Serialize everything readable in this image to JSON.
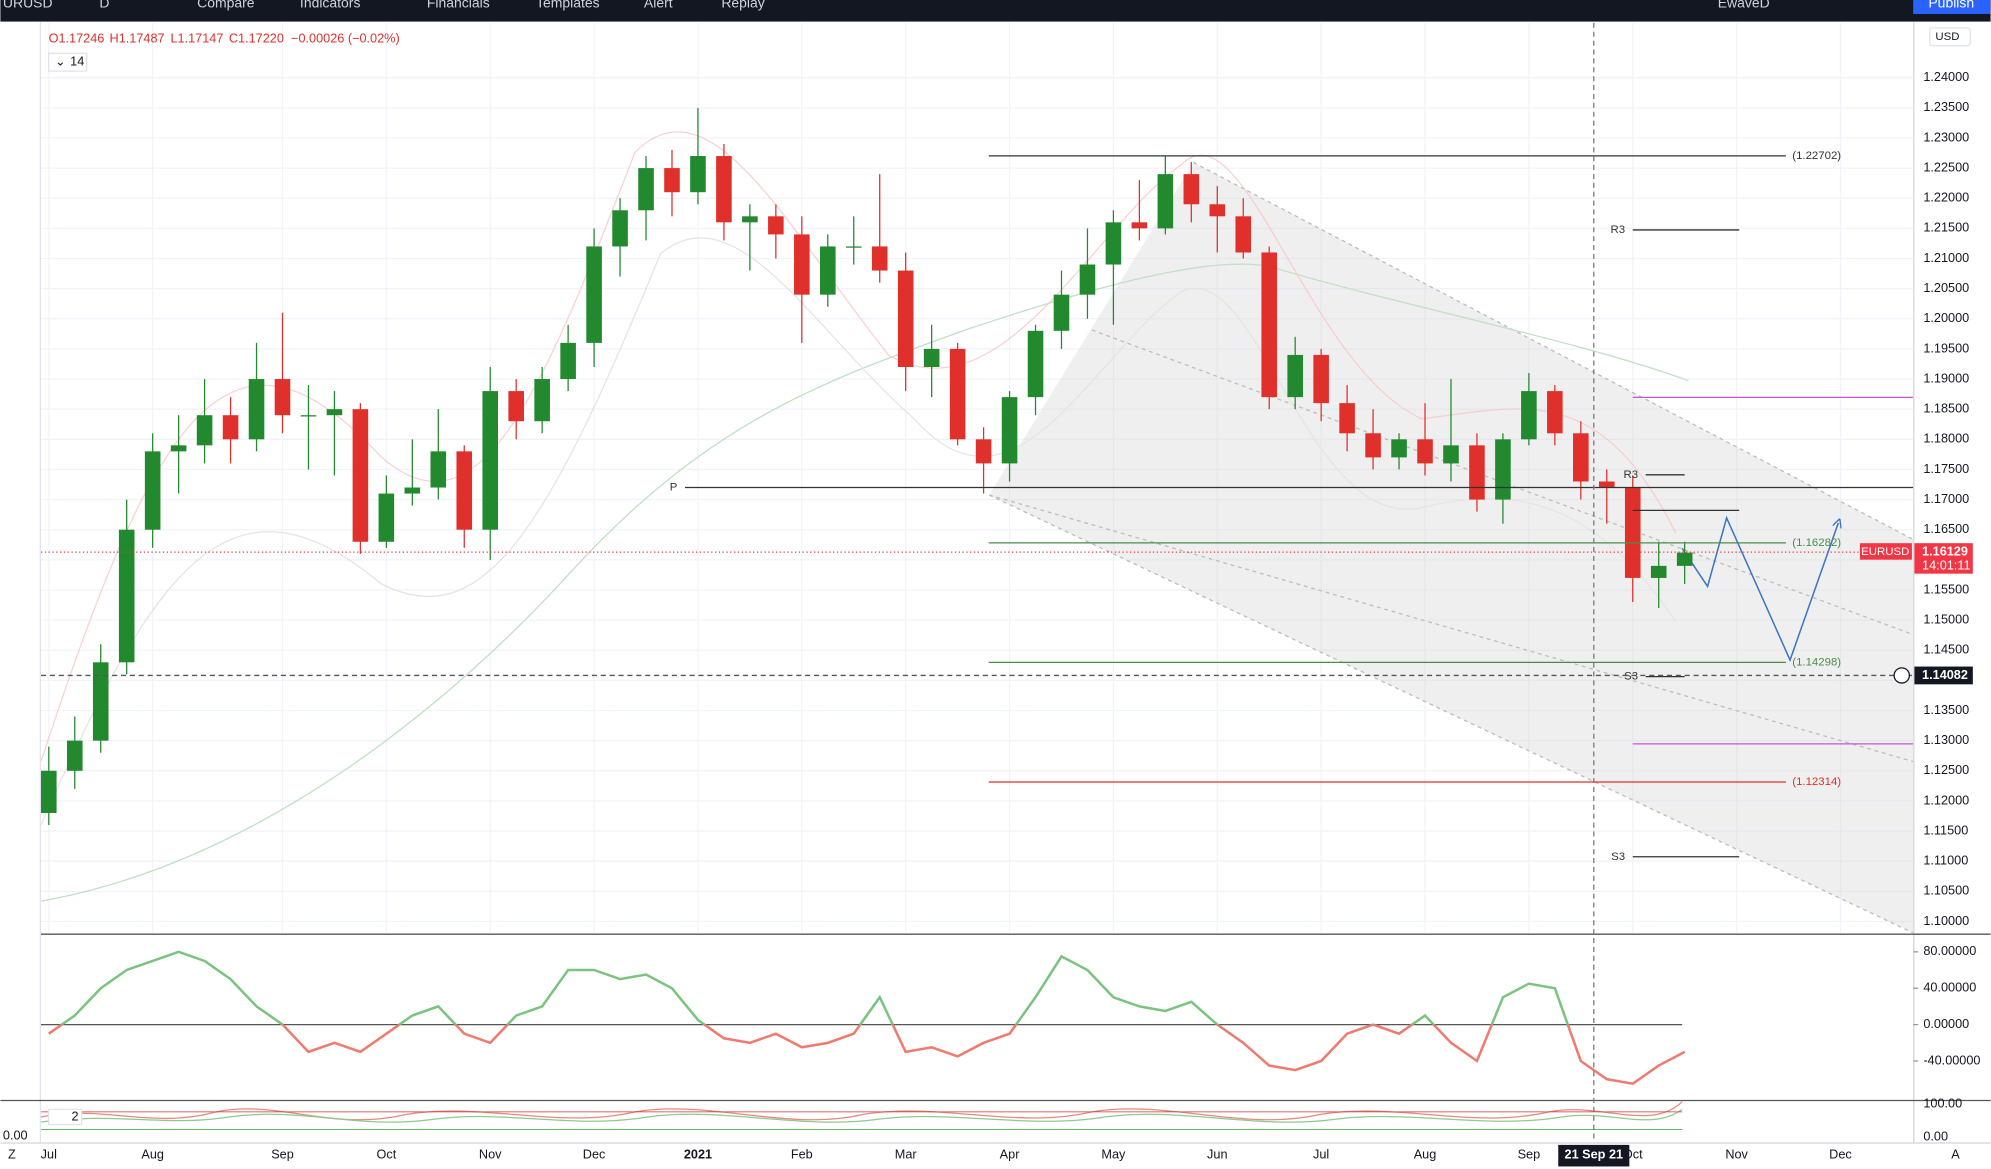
{
  "toolbar": {
    "symbol": "URUSD",
    "interval": "D",
    "items": [
      "Compare",
      "Indicators",
      "Financials",
      "Templates",
      "Alert",
      "Replay"
    ],
    "user": "EwaveD",
    "publish": "Publish"
  },
  "legend": {
    "ohlc": [
      "O1.17246",
      "H1.17487",
      "L1.17147",
      "C1.17220",
      "−0.00026 (−0.02%)"
    ],
    "length": "14"
  },
  "currency": "USD",
  "stoch_panel": {
    "collapse": "2",
    "ticks": [
      "100.00",
      "0.00"
    ],
    "left_tick": "0.00"
  },
  "footer": {
    "left": "Z",
    "right": "A"
  },
  "chart_data": [
    {
      "type": "candlestick",
      "symbol": "EURUSD",
      "up_color": "#22892f",
      "down_color": "#e0302b",
      "grid": true,
      "open": [
        1.118,
        1.125,
        1.13,
        1.143,
        1.165,
        1.178,
        1.179,
        1.184,
        1.18,
        1.19,
        1.184,
        1.184,
        1.185,
        1.163,
        1.171,
        1.172,
        1.178,
        1.165,
        1.188,
        1.183,
        1.19,
        1.196,
        1.212,
        1.218,
        1.225,
        1.221,
        1.227,
        1.216,
        1.217,
        1.214,
        1.204,
        1.212,
        1.212,
        1.208,
        1.192,
        1.195,
        1.18,
        1.176,
        1.187,
        1.198,
        1.204,
        1.209,
        1.216,
        1.215,
        1.224,
        1.219,
        1.217,
        1.211,
        1.187,
        1.194,
        1.186,
        1.181,
        1.177,
        1.18,
        1.176,
        1.179,
        1.17,
        1.18,
        1.188,
        1.181,
        1.173,
        1.172,
        1.157,
        1.159
      ],
      "high": [
        1.129,
        1.134,
        1.146,
        1.17,
        1.181,
        1.184,
        1.19,
        1.187,
        1.196,
        1.201,
        1.189,
        1.188,
        1.186,
        1.174,
        1.18,
        1.185,
        1.179,
        1.192,
        1.19,
        1.192,
        1.199,
        1.215,
        1.22,
        1.227,
        1.228,
        1.235,
        1.229,
        1.219,
        1.219,
        1.217,
        1.214,
        1.217,
        1.224,
        1.211,
        1.199,
        1.196,
        1.182,
        1.188,
        1.199,
        1.208,
        1.215,
        1.218,
        1.223,
        1.227,
        1.226,
        1.222,
        1.22,
        1.212,
        1.197,
        1.195,
        1.189,
        1.185,
        1.181,
        1.186,
        1.19,
        1.181,
        1.181,
        1.191,
        1.189,
        1.183,
        1.175,
        1.174,
        1.163,
        1.163
      ],
      "low": [
        1.116,
        1.122,
        1.128,
        1.141,
        1.162,
        1.171,
        1.176,
        1.176,
        1.178,
        1.181,
        1.175,
        1.174,
        1.161,
        1.162,
        1.169,
        1.17,
        1.162,
        1.16,
        1.18,
        1.181,
        1.188,
        1.192,
        1.207,
        1.213,
        1.217,
        1.219,
        1.213,
        1.208,
        1.21,
        1.196,
        1.202,
        1.209,
        1.206,
        1.188,
        1.187,
        1.179,
        1.171,
        1.173,
        1.184,
        1.195,
        1.2,
        1.199,
        1.213,
        1.214,
        1.216,
        1.211,
        1.21,
        1.185,
        1.185,
        1.183,
        1.178,
        1.175,
        1.175,
        1.174,
        1.173,
        1.168,
        1.166,
        1.179,
        1.179,
        1.17,
        1.166,
        1.153,
        1.152,
        1.156
      ],
      "close": [
        1.125,
        1.13,
        1.143,
        1.165,
        1.178,
        1.179,
        1.184,
        1.18,
        1.19,
        1.184,
        1.184,
        1.185,
        1.163,
        1.171,
        1.172,
        1.178,
        1.165,
        1.188,
        1.183,
        1.19,
        1.196,
        1.212,
        1.218,
        1.225,
        1.221,
        1.227,
        1.216,
        1.217,
        1.214,
        1.204,
        1.212,
        1.212,
        1.208,
        1.192,
        1.195,
        1.18,
        1.176,
        1.187,
        1.198,
        1.204,
        1.209,
        1.216,
        1.215,
        1.224,
        1.219,
        1.217,
        1.211,
        1.187,
        1.194,
        1.186,
        1.181,
        1.177,
        1.18,
        1.176,
        1.179,
        1.17,
        1.18,
        1.188,
        1.181,
        1.173,
        1.172,
        1.157,
        1.159,
        1.1612
      ],
      "xlim": [
        -0.3,
        71.8
      ],
      "xticks": [
        {
          "value": 0,
          "label": "Jul"
        },
        {
          "value": 4,
          "label": "Aug"
        },
        {
          "value": 9,
          "label": "Sep"
        },
        {
          "value": 13,
          "label": "Oct"
        },
        {
          "value": 17,
          "label": "Nov"
        },
        {
          "value": 21,
          "label": "Dec"
        },
        {
          "value": 25,
          "label": "2021"
        },
        {
          "value": 29,
          "label": "Feb"
        },
        {
          "value": 33,
          "label": "Mar"
        },
        {
          "value": 37,
          "label": "Apr"
        },
        {
          "value": 41,
          "label": "May"
        },
        {
          "value": 45,
          "label": "Jun"
        },
        {
          "value": 49,
          "label": "Jul"
        },
        {
          "value": 53,
          "label": "Aug"
        },
        {
          "value": 57,
          "label": "Sep"
        },
        {
          "value": 61,
          "label": "Oct"
        },
        {
          "value": 65,
          "label": "Nov"
        },
        {
          "value": 69,
          "label": "Dec"
        }
      ],
      "ylim": [
        1.0981,
        1.2491
      ],
      "yticks": [
        {
          "value": 1.1,
          "label": "1.10000"
        },
        {
          "value": 1.105,
          "label": "1.10500"
        },
        {
          "value": 1.11,
          "label": "1.11000"
        },
        {
          "value": 1.115,
          "label": "1.11500"
        },
        {
          "value": 1.12,
          "label": "1.12000"
        },
        {
          "value": 1.125,
          "label": "1.12500"
        },
        {
          "value": 1.13,
          "label": "1.13000"
        },
        {
          "value": 1.135,
          "label": "1.13500"
        },
        {
          "value": 1.14,
          "label": "1.14000"
        },
        {
          "value": 1.145,
          "label": "1.14500"
        },
        {
          "value": 1.15,
          "label": "1.15000"
        },
        {
          "value": 1.155,
          "label": "1.15500"
        },
        {
          "value": 1.16,
          "label": "1.16000"
        },
        {
          "value": 1.165,
          "label": "1.16500"
        },
        {
          "value": 1.17,
          "label": "1.17000"
        },
        {
          "value": 1.175,
          "label": "1.17500"
        },
        {
          "value": 1.18,
          "label": "1.18000"
        },
        {
          "value": 1.185,
          "label": "1.18500"
        },
        {
          "value": 1.19,
          "label": "1.19000"
        },
        {
          "value": 1.195,
          "label": "1.19500"
        },
        {
          "value": 1.2,
          "label": "1.20000"
        },
        {
          "value": 1.205,
          "label": "1.20500"
        },
        {
          "value": 1.21,
          "label": "1.21000"
        },
        {
          "value": 1.215,
          "label": "1.21500"
        },
        {
          "value": 1.22,
          "label": "1.22000"
        },
        {
          "value": 1.225,
          "label": "1.22500"
        },
        {
          "value": 1.23,
          "label": "1.23000"
        },
        {
          "value": 1.235,
          "label": "1.23500"
        },
        {
          "value": 1.24,
          "label": "1.24000"
        }
      ],
      "levels": [
        {
          "value": 1.22702,
          "label": "(1.22702)",
          "label_side": "right",
          "color": "#333333",
          "from": 36.2,
          "to": 66.9
        },
        {
          "value": 1.16282,
          "label": "(1.16282)",
          "label_side": "right",
          "color": "#4c8c4a",
          "from": 36.2,
          "to": 66.9
        },
        {
          "value": 1.14298,
          "label": "(1.14298)",
          "label_side": "right",
          "color": "#4c8c4a",
          "from": 36.2,
          "to": 66.9
        },
        {
          "value": 1.12314,
          "label": "(1.12314)",
          "label_side": "right",
          "color": "#e0302b",
          "from": 36.2,
          "to": 66.9
        },
        {
          "value": 1.172,
          "label": "P",
          "label_side": "left",
          "color": "#333333",
          "from": 24.5,
          "to": 71.8
        },
        {
          "value": 1.21474,
          "label": "R3",
          "label_side": "left",
          "color": "#333333",
          "from": 61.0,
          "to": 65.1
        },
        {
          "value": 1.17411,
          "label": "R3",
          "label_side": "left",
          "color": "#333333",
          "from": 61.5,
          "to": 63.0
        },
        {
          "value": 1.16821,
          "color": "#333333",
          "from": 61.0,
          "to": 65.1
        },
        {
          "value": 1.14063,
          "label": "S3",
          "label_side": "left",
          "color": "#333333",
          "from": 61.5,
          "to": 63.0
        },
        {
          "value": 1.11074,
          "label": "S3",
          "label_side": "left",
          "color": "#333333",
          "from": 61.0,
          "to": 65.1
        },
        {
          "value": 1.18695,
          "color": "#c455d6",
          "from": 61.0,
          "to": 71.8
        },
        {
          "value": 1.12947,
          "color": "#c455d6",
          "from": 61.0,
          "to": 71.8
        }
      ],
      "last_price": {
        "value": 1.16129,
        "tag": "EURUSD",
        "countdown": "14:01:11",
        "color": "#f23645"
      },
      "crosshair": {
        "value": 1.14082,
        "x": 59.5,
        "x_label": "21 Sep 21"
      }
    },
    {
      "type": "line",
      "values": [
        -10,
        10,
        40,
        60,
        70,
        80,
        70,
        50,
        20,
        0,
        -30,
        -20,
        -30,
        -10,
        10,
        20,
        -10,
        -20,
        10,
        20,
        60,
        60,
        50,
        55,
        40,
        5,
        -15,
        -20,
        -10,
        -25,
        -20,
        -10,
        30,
        -30,
        -25,
        -35,
        -20,
        -10,
        30,
        75,
        60,
        30,
        20,
        15,
        25,
        0,
        -20,
        -45,
        -50,
        -40,
        -10,
        0,
        -10,
        10,
        -20,
        -40,
        30,
        45,
        40,
        -40,
        -60,
        -65,
        -45,
        -30
      ],
      "up_color": "#7bc47f",
      "down_color": "#ef7b6e",
      "hline": 0,
      "ylim": [
        -82,
        98
      ],
      "yticks": [
        {
          "value": 80,
          "label": "80.00000"
        },
        {
          "value": 40,
          "label": "40.00000"
        },
        {
          "value": 0,
          "label": "0.00000"
        },
        {
          "value": -40,
          "label": "-40.00000"
        }
      ]
    }
  ]
}
